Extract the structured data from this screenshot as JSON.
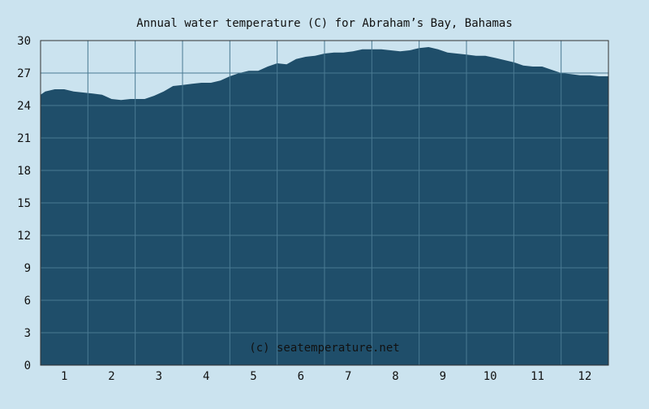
{
  "colors": {
    "background": "#cbe3ef",
    "area_fill": "#1f4e6a",
    "grid": "#4a7a93",
    "axis": "#333333",
    "text": "#111111",
    "watermark": "#ffffff"
  },
  "chart_data": {
    "type": "area",
    "title": "Annual water temperature (C) for Abraham’s Bay, Bahamas",
    "xlabel": "",
    "ylabel": "",
    "watermark": "(c) seatemperature.net",
    "ylim": [
      0,
      30
    ],
    "yticks": [
      0,
      3,
      6,
      9,
      12,
      15,
      18,
      21,
      24,
      27,
      30
    ],
    "xlim": [
      1,
      13
    ],
    "xticks": [
      {
        "label": "1",
        "x": 1.5
      },
      {
        "label": "2",
        "x": 2.5
      },
      {
        "label": "3",
        "x": 3.5
      },
      {
        "label": "4",
        "x": 4.5
      },
      {
        "label": "5",
        "x": 5.5
      },
      {
        "label": "6",
        "x": 6.5
      },
      {
        "label": "7",
        "x": 7.5
      },
      {
        "label": "8",
        "x": 8.5
      },
      {
        "label": "9",
        "x": 9.5
      },
      {
        "label": "10",
        "x": 10.5
      },
      {
        "label": "11",
        "x": 11.5
      },
      {
        "label": "12",
        "x": 12.5
      }
    ],
    "grid": true,
    "series": [
      {
        "x": [
          1.0,
          1.1,
          1.3,
          1.5,
          1.7,
          1.9,
          2.1,
          2.3,
          2.5,
          2.7,
          2.9,
          3.0,
          3.2,
          3.4,
          3.6,
          3.8,
          4.0,
          4.2,
          4.4,
          4.6,
          4.8,
          5.0,
          5.2,
          5.4,
          5.6,
          5.8,
          6.0,
          6.2,
          6.4,
          6.6,
          6.8,
          7.0,
          7.2,
          7.4,
          7.6,
          7.8,
          8.0,
          8.2,
          8.4,
          8.6,
          8.8,
          9.0,
          9.2,
          9.4,
          9.6,
          9.8,
          10.0,
          10.2,
          10.4,
          10.6,
          10.8,
          11.0,
          11.2,
          11.4,
          11.6,
          11.8,
          12.0,
          12.2,
          12.4,
          12.6,
          12.8,
          13.0
        ],
        "values": [
          25.0,
          25.3,
          25.5,
          25.5,
          25.3,
          25.2,
          25.1,
          25.0,
          24.6,
          24.5,
          24.6,
          24.6,
          24.6,
          24.9,
          25.3,
          25.8,
          25.9,
          26.0,
          26.1,
          26.1,
          26.3,
          26.7,
          27.0,
          27.2,
          27.2,
          27.6,
          27.9,
          27.8,
          28.3,
          28.5,
          28.6,
          28.8,
          28.9,
          28.9,
          29.0,
          29.2,
          29.2,
          29.2,
          29.1,
          29.0,
          29.1,
          29.3,
          29.4,
          29.2,
          28.9,
          28.8,
          28.7,
          28.6,
          28.6,
          28.4,
          28.2,
          28.0,
          27.7,
          27.6,
          27.6,
          27.3,
          27.0,
          26.9,
          26.8,
          26.8,
          26.7,
          26.7
        ]
      }
    ]
  }
}
